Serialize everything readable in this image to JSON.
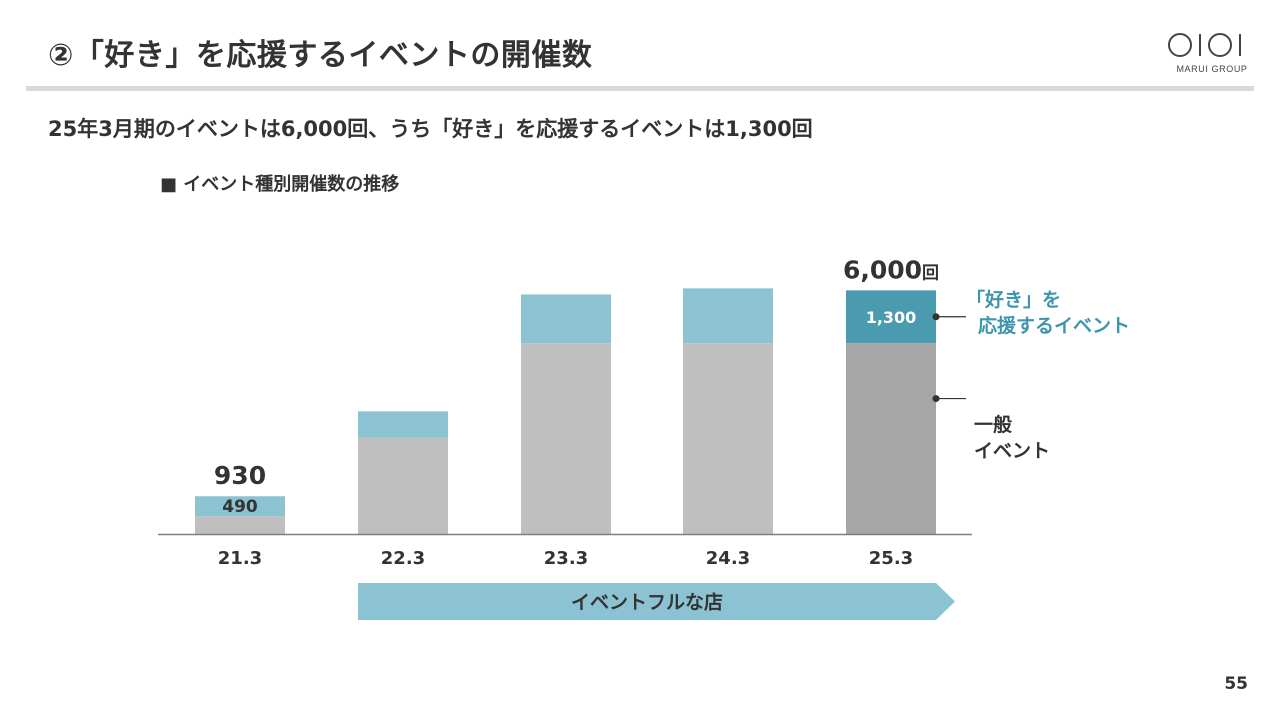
{
  "header": {
    "title": "②「好き」を応援するイベントの開催数",
    "subtitle": "25年3月期のイベントは6,000回、うち「好き」を応援するイベントは1,300回",
    "logo_text": "MARUI GROUP"
  },
  "chart_heading": "■ イベント種別開催数の推移",
  "page_number": "55",
  "colors": {
    "general": "#bfbfbf",
    "general_highlight": "#a6a6a6",
    "fan": "#8cc3d3",
    "fan_highlight": "#4a9bb0",
    "fan_label": "#3e95ad",
    "arrow": "#8cc3d3",
    "axis": "#7f7f7f",
    "text": "#333333"
  },
  "chart_data": {
    "type": "bar",
    "stacked": true,
    "categories": [
      "21.3",
      "22.3",
      "23.3",
      "24.3",
      "25.3"
    ],
    "series": [
      {
        "name": "一般イベント",
        "values": [
          440,
          2370,
          4700,
          4700,
          4700
        ]
      },
      {
        "name": "「好き」を応援するイベント",
        "values": [
          490,
          650,
          1200,
          1350,
          1300
        ]
      }
    ],
    "totals": [
      930,
      null,
      null,
      null,
      6000
    ],
    "data_labels": [
      {
        "category": "21.3",
        "series": "「好き」を応援するイベント",
        "text": "490"
      },
      {
        "category": "25.3",
        "series": "「好き」を応援するイベント",
        "text": "1,300"
      }
    ],
    "total_labels": [
      {
        "category": "21.3",
        "text": "930"
      },
      {
        "category": "25.3",
        "text": "6,000",
        "unit": "回"
      }
    ],
    "legend": {
      "placement": "right",
      "entries": [
        {
          "series": "「好き」を応援するイベント",
          "lines": [
            "「好き」を",
            "応援するイベント"
          ]
        },
        {
          "series": "一般イベント",
          "lines": [
            "一般",
            "イベント"
          ]
        }
      ]
    },
    "ylim": [
      0,
      6700
    ],
    "highlight_category": "25.3",
    "grid": false
  },
  "arrow": {
    "label": "イベントフルな店",
    "from_category": "22.3",
    "to_category": "25.3"
  }
}
